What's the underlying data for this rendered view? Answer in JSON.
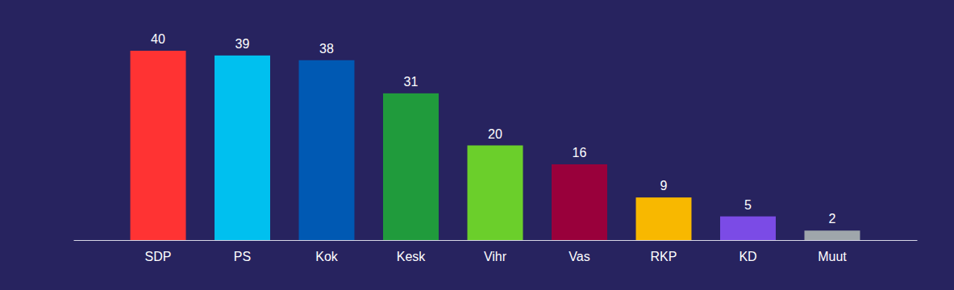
{
  "chart_data": {
    "type": "bar",
    "categories": [
      "SDP",
      "PS",
      "Kok",
      "Kesk",
      "Vihr",
      "Vas",
      "RKP",
      "KD",
      "Muut"
    ],
    "values": [
      40,
      39,
      38,
      31,
      20,
      16,
      9,
      5,
      2
    ],
    "colors": [
      "#ff3333",
      "#00c0ef",
      "#0059b3",
      "#209b3c",
      "#6bcf2b",
      "#99003b",
      "#f8b800",
      "#7b4be6",
      "#9fa6ab"
    ],
    "ylim": [
      0,
      40
    ],
    "data_labels": true,
    "tick_labels": "x"
  }
}
